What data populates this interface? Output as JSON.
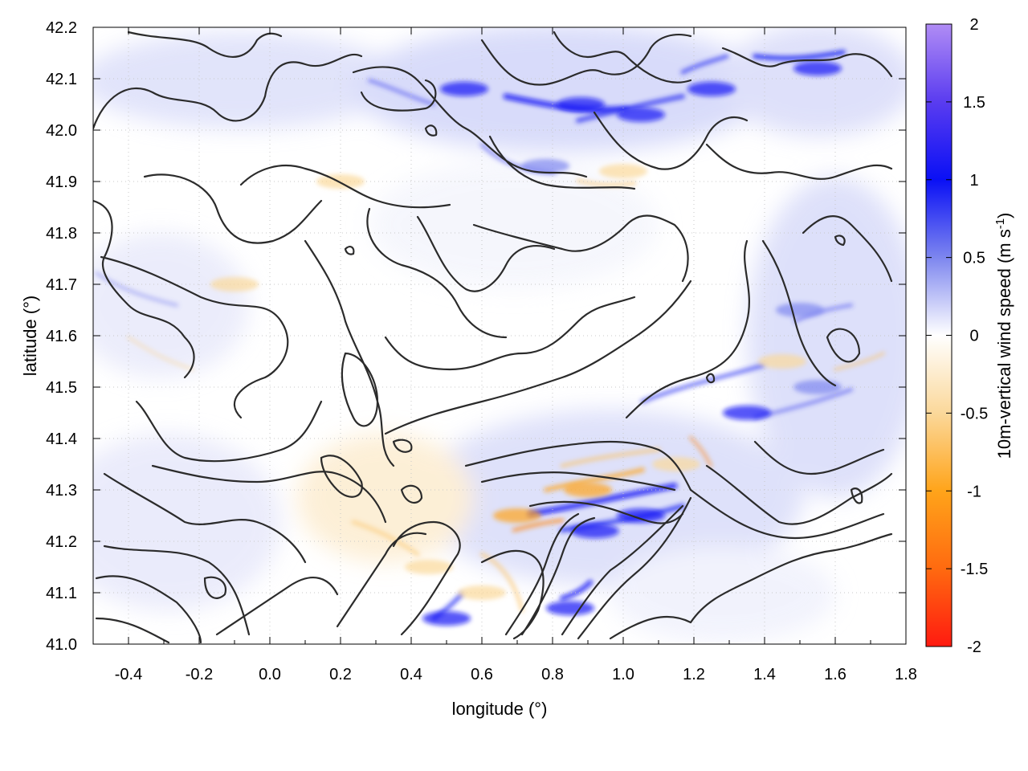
{
  "chart_data": {
    "type": "heatmap",
    "title": "",
    "xlabel": "longitude (°)",
    "ylabel": "latitude (°)",
    "xlim": [
      -0.5,
      1.8
    ],
    "ylim": [
      41.0,
      42.2
    ],
    "xticks": [
      -0.4,
      -0.2,
      0.0,
      0.2,
      0.4,
      0.6,
      0.8,
      1.0,
      1.2,
      1.4,
      1.6,
      1.8
    ],
    "xtick_labels": [
      "-0.4",
      "-0.2",
      "0.0",
      "0.2",
      "0.4",
      "0.6",
      "0.8",
      "1.0",
      "1.2",
      "1.4",
      "1.6",
      "1.8"
    ],
    "yticks": [
      41.0,
      41.1,
      41.2,
      41.3,
      41.4,
      41.5,
      41.6,
      41.7,
      41.8,
      41.9,
      42.0,
      42.1,
      42.2
    ],
    "ytick_labels": [
      "41.0",
      "41.1",
      "41.2",
      "41.3",
      "41.4",
      "41.5",
      "41.6",
      "41.7",
      "41.8",
      "41.9",
      "42.0",
      "42.1",
      "42.2"
    ],
    "grid": true,
    "colorbar": {
      "label": "10m-vertical wind speed (m s",
      "label_sup": "-1",
      "label_end": ")",
      "range": [
        -2,
        2
      ],
      "ticks": [
        2,
        1.5,
        1,
        0.5,
        0,
        -0.5,
        -1,
        -1.5,
        -2
      ],
      "tick_labels": [
        "2",
        "1.5",
        "1",
        "0.5",
        "0",
        "-0.5",
        "-1",
        "-1.5",
        "-2"
      ],
      "colors": {
        "2": "#b08cf5",
        "1.5": "#5a3cf0",
        "1": "#0a10f5",
        "0.5": "#7d86ef",
        "0": "#ffffff",
        "-0.5": "#fbd89a",
        "-1": "#ffa41a",
        "-1.5": "#ff6a10",
        "-2": "#ff1a10"
      }
    },
    "hotspots": [
      {
        "lon": 0.88,
        "lat": 42.05,
        "value": 1.2
      },
      {
        "lon": 1.05,
        "lat": 42.03,
        "value": 1.0
      },
      {
        "lon": 1.55,
        "lat": 42.12,
        "value": 1.1
      },
      {
        "lon": 1.25,
        "lat": 42.08,
        "value": 0.9
      },
      {
        "lon": 0.55,
        "lat": 42.08,
        "value": 0.8
      },
      {
        "lon": 0.78,
        "lat": 41.93,
        "value": 0.7
      },
      {
        "lon": 0.92,
        "lat": 41.22,
        "value": 1.2
      },
      {
        "lon": 1.05,
        "lat": 41.25,
        "value": 1.1
      },
      {
        "lon": 0.85,
        "lat": 41.07,
        "value": 1.0
      },
      {
        "lon": 0.5,
        "lat": 41.05,
        "value": 0.8
      },
      {
        "lon": 1.35,
        "lat": 41.45,
        "value": 0.8
      },
      {
        "lon": 1.55,
        "lat": 41.5,
        "value": 0.7
      },
      {
        "lon": 1.5,
        "lat": 41.65,
        "value": 0.6
      },
      {
        "lon": 0.9,
        "lat": 41.3,
        "value": -0.9
      },
      {
        "lon": 0.7,
        "lat": 41.25,
        "value": -0.8
      },
      {
        "lon": 1.15,
        "lat": 41.35,
        "value": -0.7
      },
      {
        "lon": 0.45,
        "lat": 41.15,
        "value": -0.5
      },
      {
        "lon": 0.6,
        "lat": 41.1,
        "value": -0.6
      },
      {
        "lon": 1.0,
        "lat": 41.92,
        "value": -0.5
      },
      {
        "lon": 1.45,
        "lat": 41.55,
        "value": -0.4
      },
      {
        "lon": -0.1,
        "lat": 41.7,
        "value": -0.3
      },
      {
        "lon": 0.2,
        "lat": 41.9,
        "value": -0.3
      }
    ]
  }
}
